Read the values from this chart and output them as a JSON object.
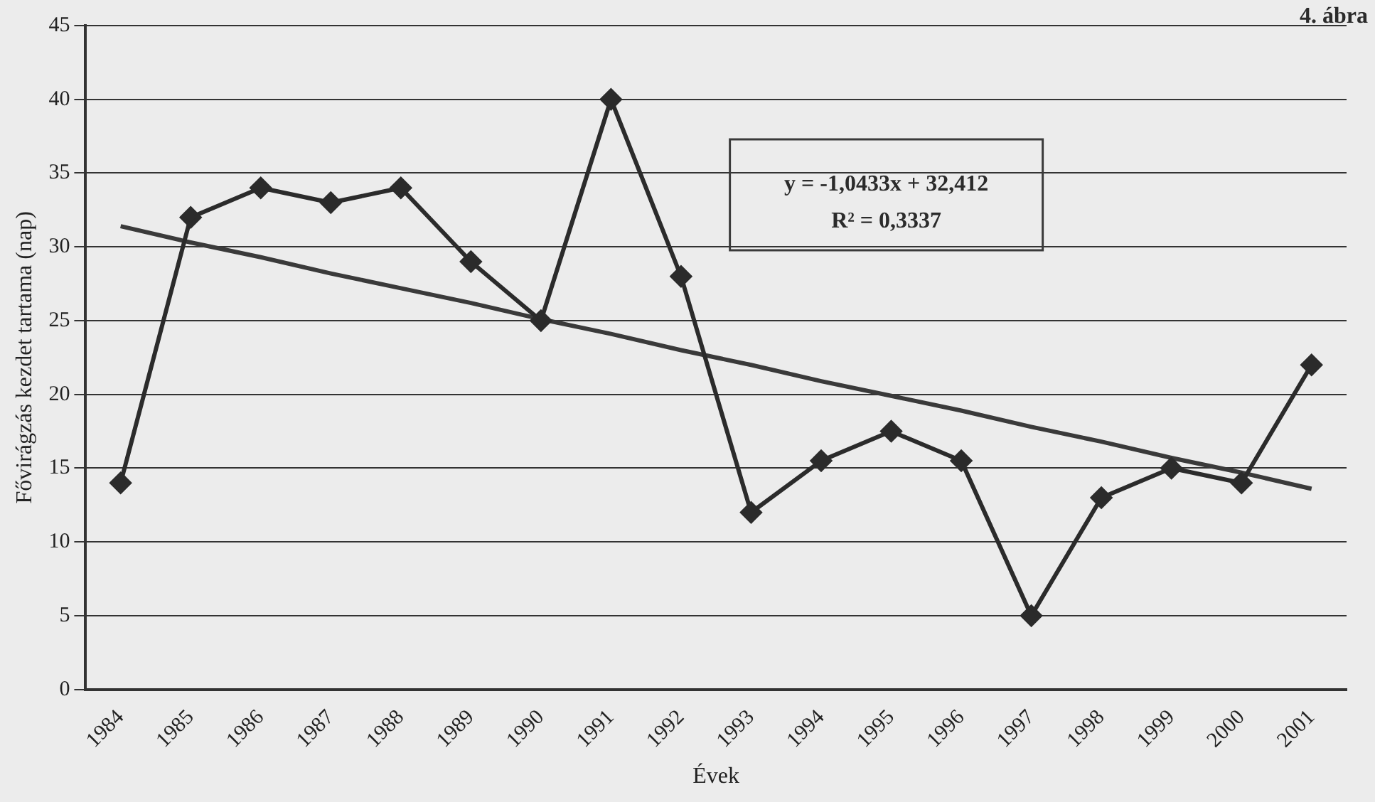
{
  "chart_data": {
    "type": "line",
    "xlabel": "Évek",
    "ylabel": "Fővirágzás kezdet tartama (nap)",
    "categories": [
      "1984",
      "1985",
      "1986",
      "1987",
      "1988",
      "1989",
      "1990",
      "1991",
      "1992",
      "1993",
      "1994",
      "1995",
      "1996",
      "1997",
      "1998",
      "1999",
      "2000",
      "2001"
    ],
    "series": [
      {
        "color": "#2b2b2b",
        "values": [
          14,
          32,
          34,
          33,
          34,
          29,
          25,
          40,
          28,
          12,
          15.5,
          17.5,
          15.5,
          5,
          13,
          15,
          14,
          22
        ]
      },
      {
        "type": "line",
        "color": "#3a3a3a",
        "marker": "none",
        "values": [
          31.4,
          30.3,
          29.3,
          28.2,
          27.2,
          26.2,
          25.1,
          24.1,
          23.0,
          22.0,
          20.9,
          19.9,
          18.9,
          17.8,
          16.8,
          15.7,
          14.7,
          13.6
        ]
      }
    ],
    "ylim": [
      0,
      45
    ],
    "yticks": [
      0,
      5,
      10,
      15,
      20,
      25,
      30,
      35,
      40,
      45
    ],
    "grid": "y",
    "legend": false,
    "marker": "diamond",
    "annotations": [
      "4. ábra",
      "y = -1,0433x + 32,412",
      "R² = 0,3337"
    ]
  }
}
